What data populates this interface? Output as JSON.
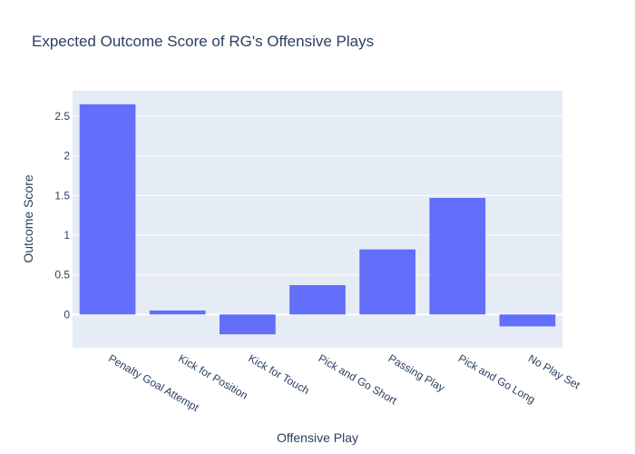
{
  "chart_data": {
    "type": "bar",
    "title": "Expected Outcome Score of RG's Offensive Plays",
    "xlabel": "Offensive Play",
    "ylabel": "Outcome Score",
    "categories": [
      "Penalty Goal Attempt",
      "Kick for Position",
      "Kick for Touch",
      "Pick and Go Short",
      "Passing Play",
      "Pick and Go Long",
      "No Play Set"
    ],
    "values": [
      2.65,
      0.05,
      -0.25,
      0.37,
      0.82,
      1.47,
      -0.15
    ],
    "ylim": [
      -0.42,
      2.82
    ],
    "yticks": [
      0,
      0.5,
      1,
      1.5,
      2,
      2.5
    ],
    "ytick_labels": [
      "0",
      "0.5",
      "1",
      "1.5",
      "2",
      "2.5"
    ],
    "grid": true,
    "colors": {
      "bar": "#636efa",
      "plot_bg": "#e5ecf6",
      "grid": "#ffffff",
      "text": "#2a3f5f"
    }
  }
}
